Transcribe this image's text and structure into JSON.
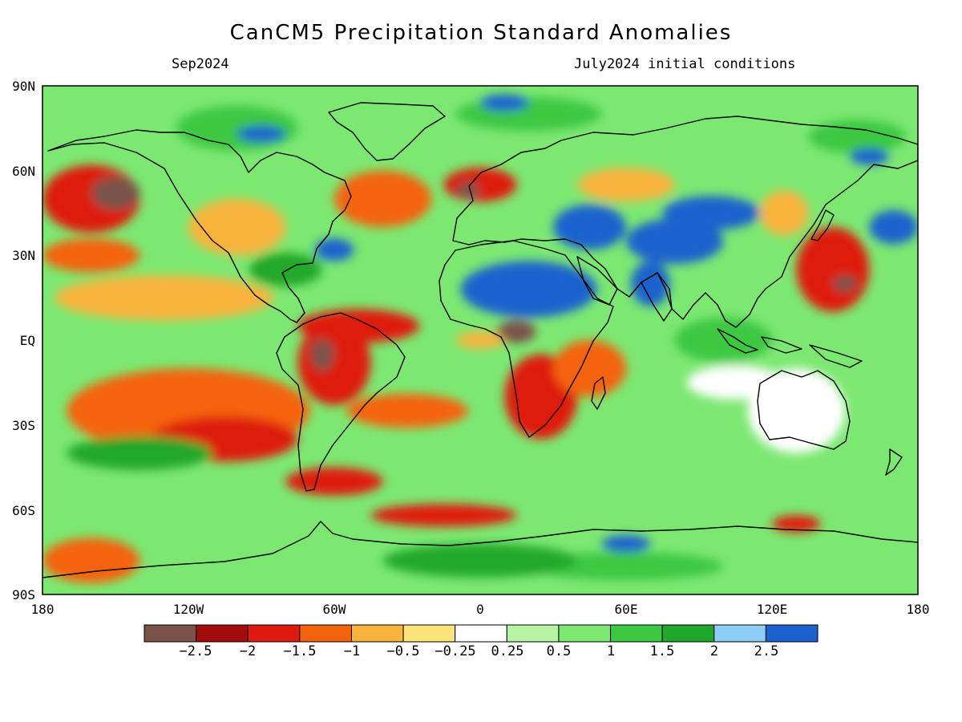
{
  "title": "CanCM5 Precipitation Standard Anomalies",
  "subtitle_left": "Sep2024",
  "subtitle_right": "July2024 initial conditions",
  "lat_labels": [
    "90N",
    "60N",
    "30N",
    "EQ",
    "30S",
    "60S",
    "90S"
  ],
  "lon_labels": [
    "180",
    "120W",
    "60W",
    "0",
    "60E",
    "120E",
    "180"
  ],
  "colorbar": {
    "labels": [
      "−2.5",
      "−2",
      "−1.5",
      "−1",
      "−0.5",
      "−0.25",
      "0.25",
      "0.5",
      "1",
      "1.5",
      "2",
      "2.5"
    ],
    "colors": [
      "#7a5248",
      "#a40a0a",
      "#de1a10",
      "#f4630c",
      "#f9b43c",
      "#fde47a",
      "#ffffff",
      "#b6f4a4",
      "#7ce872",
      "#3cc842",
      "#20a82a",
      "#8ecdf6",
      "#1c62ce"
    ]
  },
  "map_data": {
    "projection": "equirectangular",
    "lon_range": [
      -180,
      180
    ],
    "lat_range": [
      -90,
      90
    ],
    "variable": "Precipitation Standard Anomalies",
    "background_color": "#7ce872",
    "blobs": [
      {
        "lon": -130,
        "lat": 15,
        "rx": 45,
        "ry": 8,
        "c": "#f9b43c"
      },
      {
        "lon": -120,
        "lat": -25,
        "rx": 50,
        "ry": 15,
        "c": "#f4630c"
      },
      {
        "lon": -105,
        "lat": -35,
        "rx": 30,
        "ry": 8,
        "c": "#de1a10"
      },
      {
        "lon": -140,
        "lat": -40,
        "rx": 30,
        "ry": 6,
        "c": "#20a82a"
      },
      {
        "lon": -160,
        "lat": 50,
        "rx": 20,
        "ry": 12,
        "c": "#de1a10"
      },
      {
        "lon": -150,
        "lat": 52,
        "rx": 10,
        "ry": 6,
        "c": "#7a5248"
      },
      {
        "lon": -160,
        "lat": 30,
        "rx": 20,
        "ry": 6,
        "c": "#f4630c"
      },
      {
        "lon": -60,
        "lat": -8,
        "rx": 15,
        "ry": 15,
        "c": "#de1a10"
      },
      {
        "lon": -65,
        "lat": -5,
        "rx": 5,
        "ry": 6,
        "c": "#7a5248"
      },
      {
        "lon": -50,
        "lat": 5,
        "rx": 25,
        "ry": 6,
        "c": "#de1a10"
      },
      {
        "lon": -30,
        "lat": -25,
        "rx": 25,
        "ry": 6,
        "c": "#f4630c"
      },
      {
        "lon": -60,
        "lat": -50,
        "rx": 20,
        "ry": 5,
        "c": "#de1a10"
      },
      {
        "lon": -15,
        "lat": -62,
        "rx": 30,
        "ry": 4,
        "c": "#de1a10"
      },
      {
        "lon": -80,
        "lat": 25,
        "rx": 15,
        "ry": 6,
        "c": "#20a82a"
      },
      {
        "lon": -40,
        "lat": 50,
        "rx": 20,
        "ry": 10,
        "c": "#f4630c"
      },
      {
        "lon": -100,
        "lat": 40,
        "rx": 20,
        "ry": 10,
        "c": "#f9b43c"
      },
      {
        "lon": -100,
        "lat": 75,
        "rx": 25,
        "ry": 8,
        "c": "#3cc842"
      },
      {
        "lon": -90,
        "lat": 73,
        "rx": 10,
        "ry": 3,
        "c": "#1c62ce"
      },
      {
        "lon": -60,
        "lat": 32,
        "rx": 8,
        "ry": 4,
        "c": "#1c62ce"
      },
      {
        "lon": 0,
        "lat": 55,
        "rx": 15,
        "ry": 6,
        "c": "#de1a10"
      },
      {
        "lon": -5,
        "lat": 53,
        "rx": 5,
        "ry": 3,
        "c": "#7a5248"
      },
      {
        "lon": 20,
        "lat": 18,
        "rx": 28,
        "ry": 10,
        "c": "#1c62ce"
      },
      {
        "lon": 15,
        "lat": 3,
        "rx": 8,
        "ry": 4,
        "c": "#7a5248"
      },
      {
        "lon": 25,
        "lat": -20,
        "rx": 15,
        "ry": 15,
        "c": "#de1a10"
      },
      {
        "lon": 45,
        "lat": -10,
        "rx": 15,
        "ry": 10,
        "c": "#f4630c"
      },
      {
        "lon": 45,
        "lat": 40,
        "rx": 15,
        "ry": 8,
        "c": "#1c62ce"
      },
      {
        "lon": 80,
        "lat": 35,
        "rx": 20,
        "ry": 8,
        "c": "#1c62ce"
      },
      {
        "lon": 95,
        "lat": 45,
        "rx": 20,
        "ry": 6,
        "c": "#1c62ce"
      },
      {
        "lon": 70,
        "lat": 20,
        "rx": 8,
        "ry": 8,
        "c": "#1c62ce"
      },
      {
        "lon": 60,
        "lat": 55,
        "rx": 20,
        "ry": 6,
        "c": "#f9b43c"
      },
      {
        "lon": 145,
        "lat": 25,
        "rx": 15,
        "ry": 15,
        "c": "#de1a10"
      },
      {
        "lon": 150,
        "lat": 20,
        "rx": 5,
        "ry": 3,
        "c": "#7a5248"
      },
      {
        "lon": 170,
        "lat": 40,
        "rx": 10,
        "ry": 6,
        "c": "#1c62ce"
      },
      {
        "lon": 125,
        "lat": 45,
        "rx": 10,
        "ry": 8,
        "c": "#f9b43c"
      },
      {
        "lon": 130,
        "lat": -25,
        "rx": 20,
        "ry": 15,
        "c": "#ffffff"
      },
      {
        "lon": 100,
        "lat": 0,
        "rx": 20,
        "ry": 8,
        "c": "#3cc842"
      },
      {
        "lon": 105,
        "lat": -15,
        "rx": 20,
        "ry": 6,
        "c": "#ffffff"
      },
      {
        "lon": 130,
        "lat": -65,
        "rx": 10,
        "ry": 3,
        "c": "#de1a10"
      },
      {
        "lon": -160,
        "lat": -78,
        "rx": 20,
        "ry": 8,
        "c": "#f4630c"
      },
      {
        "lon": 60,
        "lat": -80,
        "rx": 40,
        "ry": 5,
        "c": "#3cc842"
      },
      {
        "lon": 0,
        "lat": -78,
        "rx": 40,
        "ry": 6,
        "c": "#20a82a"
      },
      {
        "lon": 60,
        "lat": -72,
        "rx": 10,
        "ry": 3,
        "c": "#1c62ce"
      },
      {
        "lon": 20,
        "lat": 80,
        "rx": 30,
        "ry": 6,
        "c": "#3cc842"
      },
      {
        "lon": 10,
        "lat": 84,
        "rx": 10,
        "ry": 3,
        "c": "#1c62ce"
      },
      {
        "lon": 155,
        "lat": 72,
        "rx": 20,
        "ry": 6,
        "c": "#3cc842"
      },
      {
        "lon": 160,
        "lat": 65,
        "rx": 8,
        "ry": 3,
        "c": "#1c62ce"
      },
      {
        "lon": 0,
        "lat": 0,
        "rx": 10,
        "ry": 3,
        "c": "#f9b43c"
      }
    ]
  }
}
